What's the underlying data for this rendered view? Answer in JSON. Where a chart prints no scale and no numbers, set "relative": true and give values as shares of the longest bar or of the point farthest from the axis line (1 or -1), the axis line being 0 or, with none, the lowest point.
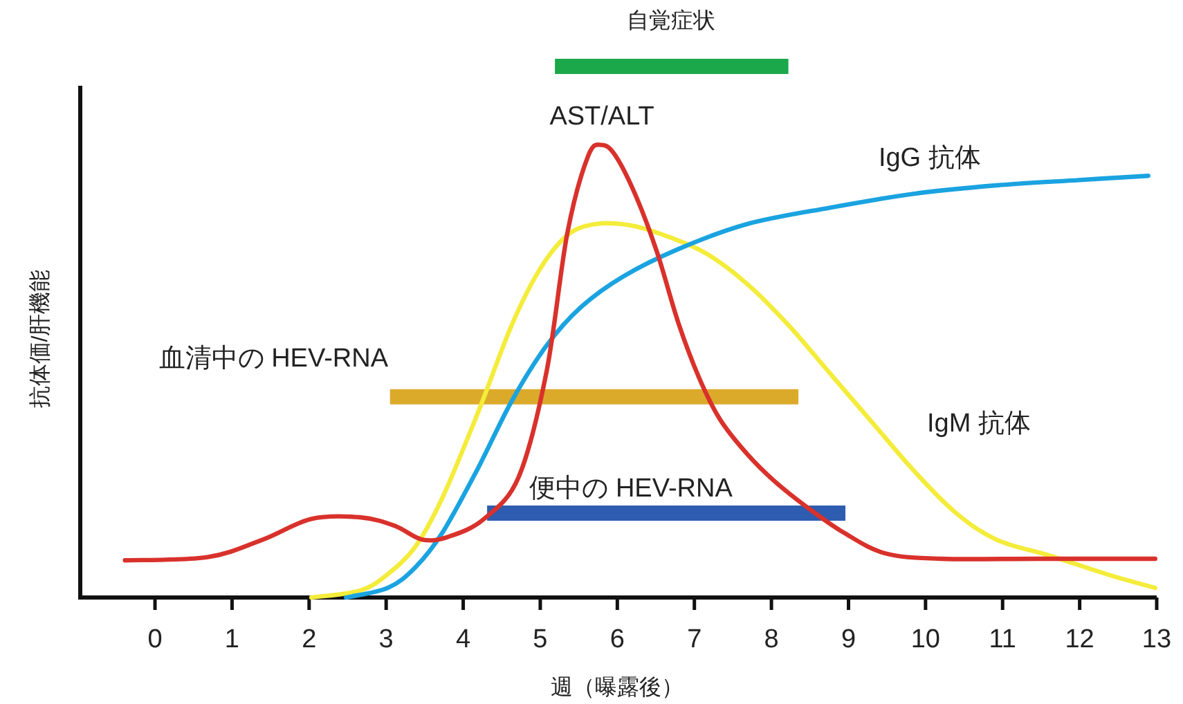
{
  "chart_data": {
    "type": "line",
    "relative": true,
    "xlabel": "週（曝露後）",
    "ylabel": "抗体価/肝機能",
    "xlim": [
      -0.97,
      13
    ],
    "xticks": [
      0,
      1,
      2,
      3,
      4,
      5,
      6,
      7,
      8,
      9,
      10,
      11,
      12,
      13
    ],
    "series": [
      {
        "name": "自覚症状",
        "color": "#1aa84a",
        "x": [
          5.19,
          8.22
        ],
        "values": [
          1.0,
          1.0
        ]
      },
      {
        "name": "血清中の HEV-RNA",
        "color": "#dcaa2b",
        "x": [
          3.05,
          8.35
        ],
        "values": [
          0.378,
          0.378
        ]
      },
      {
        "name": "便中の HEV-RNA",
        "color": "#2e5cb0",
        "x": [
          4.31,
          8.96
        ],
        "values": [
          0.159,
          0.159
        ]
      },
      {
        "name": "IgM 抗体",
        "color": "#f4ec3a",
        "x": [
          2.03,
          2.66,
          3.02,
          3.38,
          3.73,
          4.18,
          4.63,
          4.99,
          5.35,
          5.71,
          6.16,
          6.61,
          7.15,
          7.68,
          8.22,
          8.76,
          9.3,
          9.84,
          10.38,
          10.92,
          11.63,
          12.35,
          12.98
        ],
        "values": [
          0,
          0.013,
          0.044,
          0.096,
          0.188,
          0.344,
          0.513,
          0.617,
          0.682,
          0.703,
          0.701,
          0.682,
          0.648,
          0.591,
          0.513,
          0.422,
          0.331,
          0.24,
          0.161,
          0.109,
          0.078,
          0.044,
          0.018
        ]
      },
      {
        "name": "IgG 抗体",
        "color": "#1aa3e0",
        "x": [
          2.48,
          3.02,
          3.38,
          3.73,
          4.18,
          4.63,
          5.08,
          5.53,
          6.07,
          6.79,
          7.68,
          8.76,
          9.84,
          10.92,
          11.99,
          12.89
        ],
        "values": [
          0,
          0.018,
          0.057,
          0.122,
          0.24,
          0.37,
          0.474,
          0.547,
          0.604,
          0.656,
          0.703,
          0.734,
          0.76,
          0.776,
          0.786,
          0.794
        ]
      },
      {
        "name": "AST/ALT",
        "color": "#d9312b",
        "x": [
          -0.39,
          0.68,
          1.4,
          2.03,
          2.66,
          3.11,
          3.47,
          3.82,
          4.27,
          4.72,
          5.08,
          5.35,
          5.62,
          5.8,
          5.98,
          6.25,
          6.52,
          6.79,
          7.06,
          7.33,
          7.68,
          8.04,
          8.49,
          8.94,
          9.48,
          10.2,
          11.45,
          12.98
        ],
        "values": [
          0.07,
          0.076,
          0.109,
          0.148,
          0.151,
          0.135,
          0.109,
          0.115,
          0.148,
          0.227,
          0.424,
          0.685,
          0.831,
          0.852,
          0.831,
          0.753,
          0.648,
          0.518,
          0.414,
          0.336,
          0.271,
          0.219,
          0.167,
          0.122,
          0.083,
          0.073,
          0.073,
          0.073
        ]
      }
    ]
  }
}
